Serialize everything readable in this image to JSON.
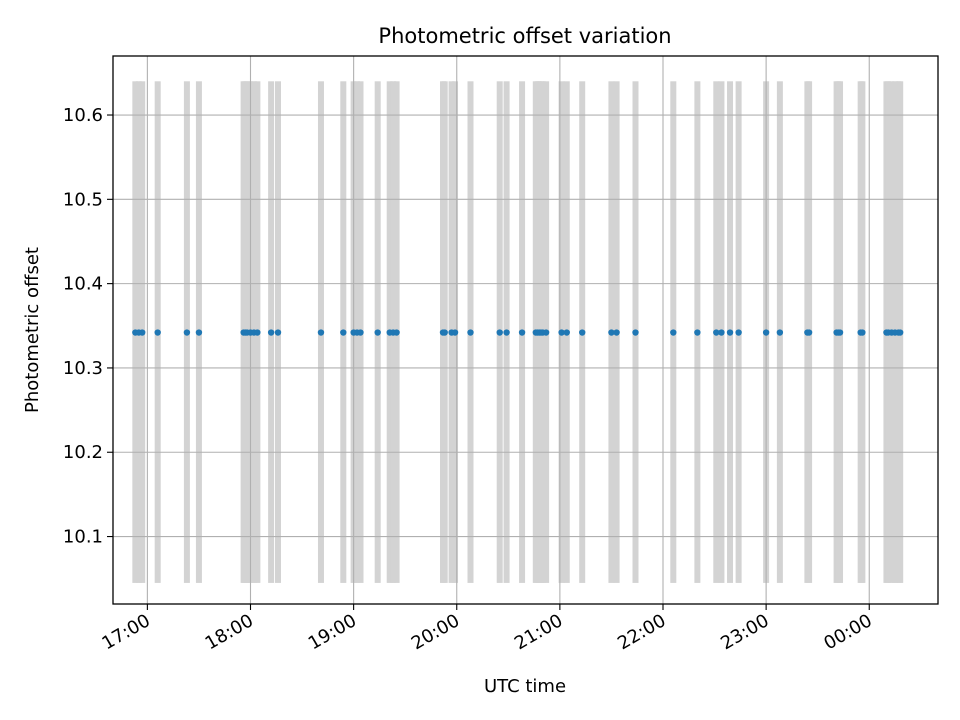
{
  "chart_data": {
    "type": "scatter",
    "title": "Photometric offset variation",
    "xlabel": "UTC time",
    "ylabel": "Photometric offset",
    "x_unit": "hours (UTC, hours beyond 24:00 are after midnight)",
    "xlim": [
      "16:40",
      "00:40"
    ],
    "ylim": [
      10.02,
      10.67
    ],
    "grid": true,
    "x_ticks": [
      "17:00",
      "18:00",
      "19:00",
      "20:00",
      "21:00",
      "22:00",
      "23:00",
      "00:00"
    ],
    "x_tick_hours": [
      17,
      18,
      19,
      20,
      21,
      22,
      23,
      24
    ],
    "y_ticks": [
      "10.1",
      "10.2",
      "10.3",
      "10.4",
      "10.5",
      "10.6"
    ],
    "y_tick_values": [
      10.1,
      10.2,
      10.3,
      10.4,
      10.5,
      10.6
    ],
    "bands": {
      "color": "#d3d3d3",
      "y_range": [
        10.045,
        10.64
      ],
      "times": [
        "16:53",
        "16:55",
        "16:57",
        "17:06",
        "17:23",
        "17:30",
        "17:56",
        "17:57",
        "17:58",
        "18:00",
        "18:02",
        "18:04",
        "18:12",
        "18:16",
        "18:41",
        "18:54",
        "19:00",
        "19:02",
        "19:04",
        "19:14",
        "19:21",
        "19:23",
        "19:25",
        "19:52",
        "19:53",
        "19:57",
        "19:59",
        "20:08",
        "20:25",
        "20:29",
        "20:38",
        "20:46",
        "20:47",
        "20:48",
        "20:49",
        "20:50",
        "20:52",
        "21:01",
        "21:04",
        "21:13",
        "21:30",
        "21:33",
        "21:44",
        "22:06",
        "22:20",
        "22:31",
        "22:34",
        "22:39",
        "22:44",
        "23:00",
        "23:08",
        "23:24",
        "23:25",
        "23:41",
        "23:42",
        "23:43",
        "23:55",
        "23:56",
        "00:10",
        "00:11",
        "00:13",
        "00:15",
        "00:17",
        "00:18"
      ]
    },
    "series": [
      {
        "color": "#1f77b4",
        "y": 10.342,
        "times": [
          "16:53",
          "16:55",
          "16:57",
          "17:06",
          "17:23",
          "17:30",
          "17:56",
          "17:57",
          "17:58",
          "18:00",
          "18:02",
          "18:04",
          "18:12",
          "18:16",
          "18:41",
          "18:54",
          "19:00",
          "19:02",
          "19:04",
          "19:14",
          "19:21",
          "19:23",
          "19:25",
          "19:52",
          "19:53",
          "19:57",
          "19:59",
          "20:08",
          "20:25",
          "20:29",
          "20:38",
          "20:46",
          "20:47",
          "20:48",
          "20:49",
          "20:50",
          "20:52",
          "21:01",
          "21:04",
          "21:13",
          "21:30",
          "21:33",
          "21:44",
          "22:06",
          "22:20",
          "22:31",
          "22:34",
          "22:39",
          "22:44",
          "23:00",
          "23:08",
          "23:24",
          "23:25",
          "23:41",
          "23:42",
          "23:43",
          "23:55",
          "23:56",
          "00:10",
          "00:11",
          "00:13",
          "00:15",
          "00:17",
          "00:18"
        ]
      }
    ]
  }
}
